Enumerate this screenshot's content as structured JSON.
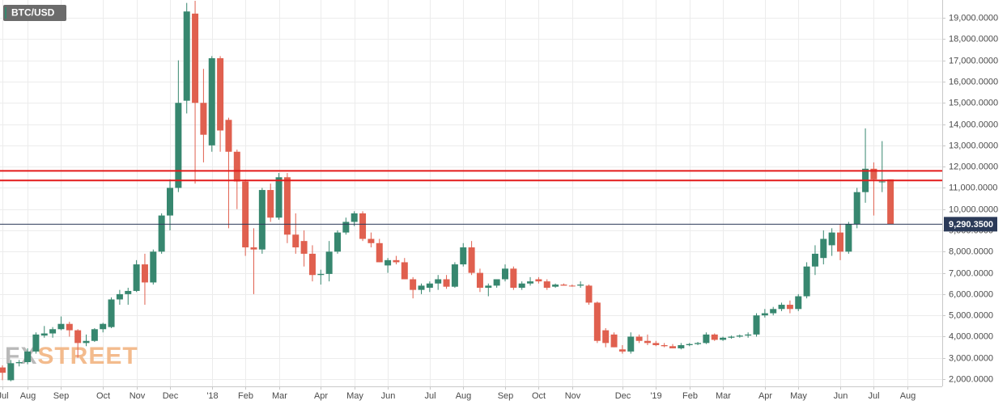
{
  "chart_data": {
    "type": "candlestick",
    "title": "BTC/USD",
    "watermark": [
      "FX",
      "STREET"
    ],
    "up_color": "#37876f",
    "down_color": "#e0604f",
    "categories": [
      "Jul",
      null,
      null,
      "Aug",
      null,
      null,
      null,
      "Sep",
      null,
      null,
      null,
      null,
      "Oct",
      null,
      null,
      null,
      "Nov",
      null,
      null,
      null,
      "Dec",
      null,
      null,
      null,
      null,
      "'18",
      null,
      null,
      null,
      "Feb",
      null,
      null,
      null,
      "Mar",
      null,
      null,
      null,
      null,
      "Apr",
      null,
      null,
      null,
      "May",
      null,
      null,
      null,
      "Jun",
      null,
      null,
      null,
      null,
      "Jul",
      null,
      null,
      null,
      "Aug",
      null,
      null,
      null,
      null,
      "Sep",
      null,
      null,
      null,
      "Oct",
      null,
      null,
      null,
      "Nov",
      null,
      null,
      null,
      null,
      null,
      "Dec",
      null,
      null,
      null,
      "'19",
      null,
      null,
      null,
      "Feb",
      null,
      null,
      null,
      "Mar",
      null,
      null,
      null,
      null,
      "Apr",
      null,
      null,
      null,
      "May",
      null,
      null,
      null,
      null,
      "Jun",
      null,
      null,
      null,
      "Jul",
      null,
      null,
      null,
      "Aug"
    ],
    "open": [
      2550,
      1950,
      2750,
      2800,
      3300,
      4050,
      4150,
      4350,
      4600,
      4300,
      3700,
      3800,
      4350,
      4450,
      5750,
      6000,
      6150,
      7400,
      6550,
      8000,
      9700,
      11000,
      15100,
      19200,
      15000,
      13000,
      17100,
      14200,
      12700,
      11300,
      8200,
      8100,
      10900,
      9600,
      11500,
      8800,
      8500,
      7900,
      6900,
      6950,
      8000,
      8900,
      9400,
      9800,
      8600,
      8400,
      7350,
      7600,
      7500,
      6700,
      6200,
      6300,
      6500,
      6700,
      6350,
      7400,
      8200,
      7000,
      6300,
      6400,
      6700,
      7200,
      6300,
      6500,
      6700,
      6600,
      6350,
      6450,
      6400,
      6400,
      6400,
      5600,
      4300,
      4100,
      3400,
      3300,
      4000,
      3800,
      3700,
      3600,
      3550,
      3450,
      3600,
      3650,
      3700,
      4100,
      3850,
      3950,
      4000,
      4050,
      4100,
      5000,
      5100,
      5300,
      5500,
      5300,
      5900,
      7300,
      7700,
      8300,
      8900,
      8000,
      9300,
      10800,
      11900,
      11300,
      11400,
      null,
      null
    ],
    "high": [
      2650,
      2900,
      2900,
      3450,
      4200,
      4500,
      4450,
      4950,
      4700,
      4350,
      4100,
      4400,
      4650,
      5850,
      6200,
      6300,
      7600,
      7900,
      8100,
      9800,
      11400,
      17000,
      19700,
      19800,
      16600,
      17200,
      17200,
      14300,
      12800,
      11400,
      9100,
      11000,
      11200,
      11700,
      11700,
      9800,
      9000,
      8300,
      7150,
      8500,
      9000,
      9600,
      9900,
      9900,
      8900,
      8600,
      7700,
      7800,
      7700,
      6800,
      6500,
      6600,
      6900,
      6900,
      7500,
      8400,
      8500,
      7200,
      6500,
      6700,
      7400,
      7300,
      6600,
      6800,
      6800,
      6700,
      6500,
      6500,
      6450,
      6600,
      6450,
      5650,
      4400,
      4200,
      3600,
      4200,
      4100,
      4100,
      3800,
      3700,
      3650,
      3700,
      3700,
      3750,
      4200,
      4150,
      4000,
      4050,
      4100,
      4200,
      5100,
      5300,
      5400,
      5600,
      5700,
      6000,
      7500,
      8300,
      9000,
      9100,
      9300,
      9400,
      11000,
      13800,
      12200,
      13200,
      11400,
      null,
      null
    ],
    "low": [
      1950,
      1900,
      2600,
      2700,
      3200,
      3950,
      3950,
      4300,
      4000,
      3000,
      3550,
      3750,
      4200,
      4400,
      5500,
      5500,
      6100,
      5500,
      6450,
      7900,
      9000,
      10800,
      14500,
      11200,
      12200,
      12700,
      12700,
      9100,
      10000,
      7800,
      6000,
      7900,
      9400,
      9500,
      8400,
      7900,
      7300,
      6600,
      6450,
      6600,
      7900,
      8800,
      9200,
      8500,
      8200,
      7500,
      7000,
      7400,
      6700,
      5800,
      6000,
      6100,
      6200,
      6250,
      6300,
      7300,
      6900,
      6100,
      5900,
      6300,
      6600,
      6200,
      6200,
      6400,
      6500,
      6200,
      6300,
      6400,
      6350,
      6300,
      5500,
      3700,
      3500,
      3500,
      3200,
      3200,
      3700,
      3600,
      3550,
      3500,
      3450,
      3400,
      3550,
      3600,
      3650,
      3800,
      3800,
      3900,
      3950,
      3950,
      4000,
      4900,
      5000,
      5200,
      5100,
      5200,
      5800,
      6900,
      7400,
      7800,
      7600,
      7900,
      9100,
      10300,
      9700,
      10800,
      9290.35,
      null,
      null
    ],
    "close": [
      2300,
      2750,
      2800,
      3300,
      4100,
      4150,
      4350,
      4600,
      4300,
      3700,
      3800,
      4350,
      4600,
      5750,
      6000,
      6150,
      7400,
      6550,
      8000,
      9700,
      11000,
      15000,
      19300,
      15000,
      13500,
      17100,
      13700,
      12700,
      11300,
      8200,
      8100,
      10900,
      9600,
      11500,
      8800,
      8200,
      7900,
      6900,
      6950,
      8000,
      8900,
      9400,
      9800,
      8600,
      8400,
      7500,
      7600,
      7500,
      6700,
      6200,
      6400,
      6500,
      6700,
      6350,
      7400,
      8200,
      7000,
      6300,
      6400,
      6700,
      7200,
      6300,
      6500,
      6600,
      6600,
      6300,
      6450,
      6400,
      6380,
      6450,
      5600,
      3800,
      3700,
      3500,
      3300,
      4000,
      3800,
      3700,
      3600,
      3550,
      3450,
      3600,
      3650,
      3700,
      4100,
      3850,
      3950,
      4000,
      4050,
      4100,
      5000,
      5100,
      5300,
      5500,
      5300,
      5900,
      7300,
      7900,
      8600,
      8900,
      8000,
      9300,
      10800,
      11900,
      11400,
      11300,
      9290.35,
      null,
      null
    ],
    "ylim": [
      1660,
      19840
    ],
    "yticks": [
      {
        "value": 2000,
        "label": "2,000.0000"
      },
      {
        "value": 3000,
        "label": "3,000.0000"
      },
      {
        "value": 4000,
        "label": "4,000.0000"
      },
      {
        "value": 5000,
        "label": "5,000.0000"
      },
      {
        "value": 6000,
        "label": "6,000.0000"
      },
      {
        "value": 7000,
        "label": "7,000.0000"
      },
      {
        "value": 8000,
        "label": "8,000.0000"
      },
      {
        "value": 9000,
        "label": "9,000.0000"
      },
      {
        "value": 10000,
        "label": "10,000.0000"
      },
      {
        "value": 11000,
        "label": "11,000.0000"
      },
      {
        "value": 12000,
        "label": "12,000.0000"
      },
      {
        "value": 13000,
        "label": "13,000.0000"
      },
      {
        "value": 14000,
        "label": "14,000.0000"
      },
      {
        "value": 15000,
        "label": "15,000.0000"
      },
      {
        "value": 16000,
        "label": "16,000.0000"
      },
      {
        "value": 17000,
        "label": "17,000.0000"
      },
      {
        "value": 18000,
        "label": "18,000.0000"
      },
      {
        "value": 19000,
        "label": "19,000.0000"
      }
    ],
    "grid": true,
    "levels": [
      11800,
      11350
    ],
    "level_color": "#e31b1b",
    "last_price": {
      "value": 9290.35,
      "label": "9,290.3500"
    },
    "last_price_color": "#2b3a58"
  }
}
